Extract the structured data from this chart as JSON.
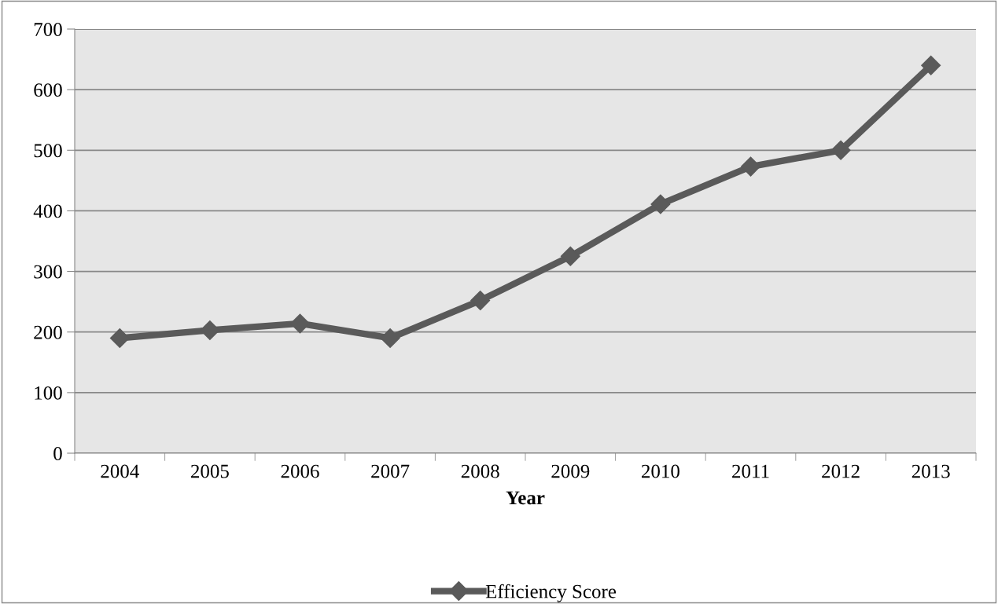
{
  "chart_data": {
    "type": "line",
    "xlabel": "Year",
    "categories": [
      "2004",
      "2005",
      "2006",
      "2007",
      "2008",
      "2009",
      "2010",
      "2011",
      "2012",
      "2013"
    ],
    "series": [
      {
        "name": "Efficiency Score",
        "color": "#5a5a5a",
        "values": [
          190,
          203,
          214,
          190,
          252,
          325,
          411,
          473,
          500,
          640
        ]
      }
    ],
    "ylim": [
      0,
      700
    ],
    "yticks": [
      0,
      100,
      200,
      300,
      400,
      500,
      600,
      700
    ],
    "grid": "y",
    "legend": "bottom",
    "marker": "diamond",
    "line_style": "solid"
  }
}
